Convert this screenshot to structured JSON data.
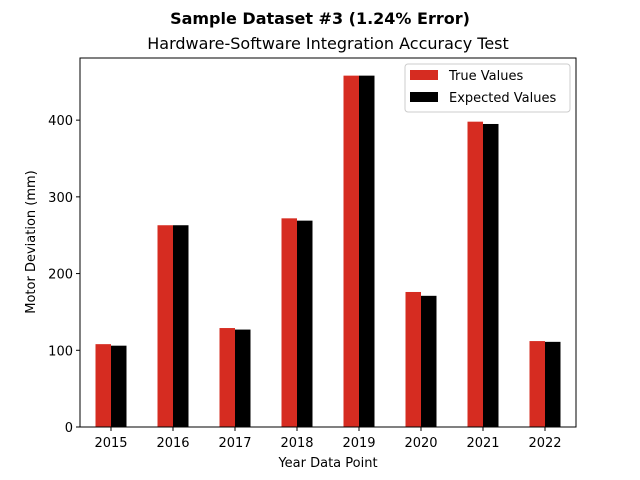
{
  "chart_data": {
    "type": "bar",
    "title": "Sample Dataset #3 (1.24% Error)",
    "subtitle": "Hardware-Software Integration Accuracy Test",
    "xlabel": "Year Data Point",
    "ylabel": "Motor Deviation (mm)",
    "categories": [
      "2015",
      "2016",
      "2017",
      "2018",
      "2019",
      "2020",
      "2021",
      "2022"
    ],
    "series": [
      {
        "name": "True Values",
        "color": "#d62c21",
        "values": [
          108,
          263,
          129,
          272,
          458,
          176,
          398,
          112
        ]
      },
      {
        "name": "Expected Values",
        "color": "#000000",
        "values": [
          106,
          263,
          127,
          269,
          458,
          171,
          395,
          111
        ]
      }
    ],
    "ylim": [
      0,
      481
    ],
    "yticks": [
      0,
      100,
      200,
      300,
      400
    ],
    "grid": false,
    "legend": "top-right"
  }
}
